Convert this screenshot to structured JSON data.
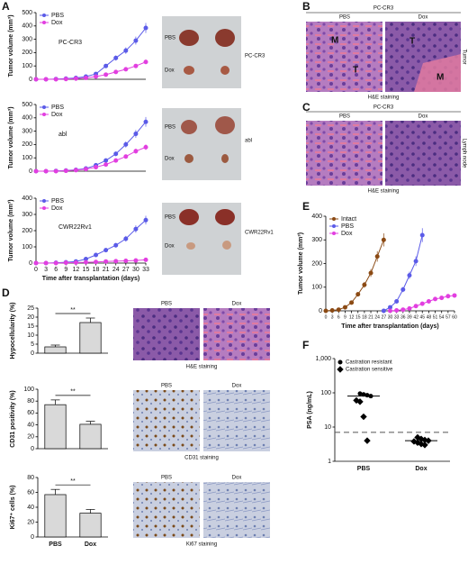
{
  "panel_labels": [
    "A",
    "B",
    "C",
    "D",
    "E",
    "F"
  ],
  "chart_data": [
    {
      "type": "line",
      "annotation": "PC-CR3",
      "ylabel": "Tumor volume (mm³)",
      "x": [
        0,
        3,
        6,
        9,
        12,
        15,
        18,
        21,
        24,
        27,
        30,
        33
      ],
      "series": [
        {
          "name": "PBS",
          "color": "#5b5be8",
          "values": [
            0,
            0,
            2,
            5,
            10,
            20,
            40,
            100,
            160,
            215,
            290,
            385
          ]
        },
        {
          "name": "Dox",
          "color": "#e23fe0",
          "values": [
            0,
            0,
            0,
            2,
            5,
            10,
            20,
            35,
            55,
            75,
            100,
            130
          ]
        }
      ],
      "xlim": [
        0,
        33
      ],
      "ylim": [
        0,
        500
      ],
      "yticks": [
        0,
        100,
        200,
        300,
        400,
        500
      ]
    },
    {
      "type": "line",
      "annotation": "abl",
      "ylabel": "Tumor volume (mm³)",
      "x": [
        0,
        3,
        6,
        9,
        12,
        15,
        18,
        21,
        24,
        27,
        30,
        33
      ],
      "series": [
        {
          "name": "PBS",
          "color": "#5b5be8",
          "values": [
            0,
            0,
            2,
            5,
            10,
            20,
            45,
            80,
            130,
            200,
            280,
            370
          ]
        },
        {
          "name": "Dox",
          "color": "#e23fe0",
          "values": [
            0,
            0,
            0,
            3,
            8,
            15,
            30,
            50,
            80,
            110,
            150,
            180
          ]
        }
      ],
      "xlim": [
        0,
        33
      ],
      "ylim": [
        0,
        500
      ],
      "yticks": [
        0,
        100,
        200,
        300,
        400,
        500
      ]
    },
    {
      "type": "line",
      "annotation": "CWR22Rv1",
      "ylabel": "Tumor volume (mm³)",
      "xlabel": "Time after transplantation (days)",
      "x": [
        0,
        3,
        6,
        9,
        12,
        15,
        18,
        21,
        24,
        27,
        30,
        33
      ],
      "series": [
        {
          "name": "PBS",
          "color": "#5b5be8",
          "values": [
            0,
            0,
            2,
            5,
            10,
            25,
            50,
            80,
            110,
            150,
            210,
            265
          ]
        },
        {
          "name": "Dox",
          "color": "#e23fe0",
          "values": [
            0,
            0,
            0,
            2,
            3,
            5,
            7,
            10,
            12,
            14,
            16,
            20
          ]
        }
      ],
      "xlim": [
        0,
        33
      ],
      "xticks": [
        0,
        3,
        6,
        9,
        12,
        15,
        18,
        21,
        24,
        27,
        30,
        33
      ],
      "ylim": [
        0,
        400
      ],
      "yticks": [
        0,
        100,
        200,
        300,
        400
      ]
    },
    {
      "type": "line",
      "ylabel": "Tumor volume (mm³)",
      "xlabel": "Time after transplantation (days)",
      "x": [
        0,
        3,
        6,
        9,
        12,
        15,
        18,
        21,
        24,
        27,
        30,
        33,
        36,
        39,
        42,
        45,
        48,
        51,
        54,
        57,
        60
      ],
      "series": [
        {
          "name": "Intact",
          "color": "#8b4a14",
          "values": [
            0,
            2,
            5,
            15,
            35,
            70,
            110,
            160,
            230,
            300,
            null,
            null,
            null,
            null,
            null,
            null,
            null,
            null,
            null,
            null,
            null
          ]
        },
        {
          "name": "PBS",
          "color": "#5b5be8",
          "values": [
            null,
            null,
            null,
            null,
            null,
            null,
            null,
            null,
            null,
            0,
            15,
            40,
            90,
            150,
            210,
            320,
            null,
            null,
            null,
            null,
            null
          ]
        },
        {
          "name": "Dox",
          "color": "#e23fe0",
          "values": [
            null,
            null,
            null,
            null,
            null,
            null,
            null,
            null,
            null,
            null,
            0,
            2,
            5,
            10,
            20,
            30,
            40,
            50,
            55,
            62,
            65
          ]
        }
      ],
      "xlim": [
        0,
        60
      ],
      "xticks": [
        0,
        3,
        6,
        9,
        12,
        15,
        18,
        21,
        24,
        27,
        30,
        33,
        36,
        39,
        42,
        45,
        48,
        51,
        54,
        57,
        60
      ],
      "ylim": [
        0,
        400
      ],
      "yticks": [
        0,
        100,
        200,
        300,
        400
      ]
    },
    {
      "type": "bar",
      "ylabel": "Hypocellularity (%)",
      "annotation": "**",
      "color": "#d9d9d9",
      "categories": [
        null,
        null
      ],
      "values": [
        3.5,
        17
      ],
      "errors": [
        1,
        2.5
      ],
      "ylim": [
        0,
        25
      ],
      "yticks": [
        0,
        5,
        10,
        15,
        20,
        25
      ]
    },
    {
      "type": "bar",
      "ylabel": "CD31 positivity (%)",
      "annotation": "**",
      "color": "#d9d9d9",
      "categories": [
        null,
        null
      ],
      "values": [
        74,
        41
      ],
      "errors": [
        8,
        5
      ],
      "ylim": [
        0,
        100
      ],
      "yticks": [
        0,
        20,
        40,
        60,
        80,
        100
      ]
    },
    {
      "type": "bar",
      "ylabel": "Ki67⁺ cells (%)",
      "annotation": "**",
      "color": "#d9d9d9",
      "categories": [
        "PBS",
        "Dox"
      ],
      "values": [
        57,
        32
      ],
      "errors": [
        7,
        5
      ],
      "ylim": [
        0,
        80
      ],
      "yticks": [
        0,
        20,
        40,
        60,
        80
      ]
    },
    {
      "type": "scatter",
      "ylabel": "PSA (ng/mL)",
      "y_scale": "log",
      "categories": [
        "PBS",
        "Dox"
      ],
      "series": [
        {
          "name": "Castration resistant",
          "marker": "circle",
          "x": [
            "PBS",
            "PBS",
            "PBS",
            "PBS"
          ],
          "values": [
            95,
            90,
            85,
            80
          ]
        },
        {
          "name": "Castration sensitive",
          "marker": "diamond",
          "x": [
            "PBS",
            "PBS",
            "PBS",
            "PBS",
            "Dox",
            "Dox",
            "Dox",
            "Dox",
            "Dox",
            "Dox",
            "Dox",
            "Dox"
          ],
          "values": [
            60,
            55,
            20,
            4,
            5,
            4.5,
            4.2,
            4,
            3.8,
            3.5,
            3.2,
            3
          ]
        }
      ],
      "medians": [
        80,
        4
      ],
      "reference_line": 7,
      "ylim": [
        1,
        1000
      ],
      "yticks": [
        1,
        10,
        100,
        {
          "value": 1000,
          "label": "1,000"
        }
      ]
    }
  ],
  "photos": {
    "A": [
      {
        "rows": [
          "PBS",
          "Dox"
        ],
        "label": "PC-CR3"
      },
      {
        "rows": [
          "PBS",
          "Dox"
        ],
        "label": "abl"
      },
      {
        "rows": [
          "PBS",
          "Dox"
        ],
        "label": "CWR22Rv1"
      }
    ],
    "B": {
      "title": "PC-CR3",
      "columns": [
        "PBS",
        "Dox"
      ],
      "regions": [
        "M",
        "T",
        "T",
        "M"
      ],
      "side": "Tumor",
      "caption": "H&E staining"
    },
    "C": {
      "title": "PC-CR3",
      "columns": [
        "PBS",
        "Dox"
      ],
      "side": "Lymph node",
      "caption": "H&E staining"
    },
    "D": [
      {
        "columns": [
          "PBS",
          "Dox"
        ],
        "caption": "H&E staining"
      },
      {
        "columns": [
          "PBS",
          "Dox"
        ],
        "caption": "CD31 staining"
      },
      {
        "columns": [
          "PBS",
          "Dox"
        ],
        "caption": "Ki67 staining"
      }
    ]
  }
}
